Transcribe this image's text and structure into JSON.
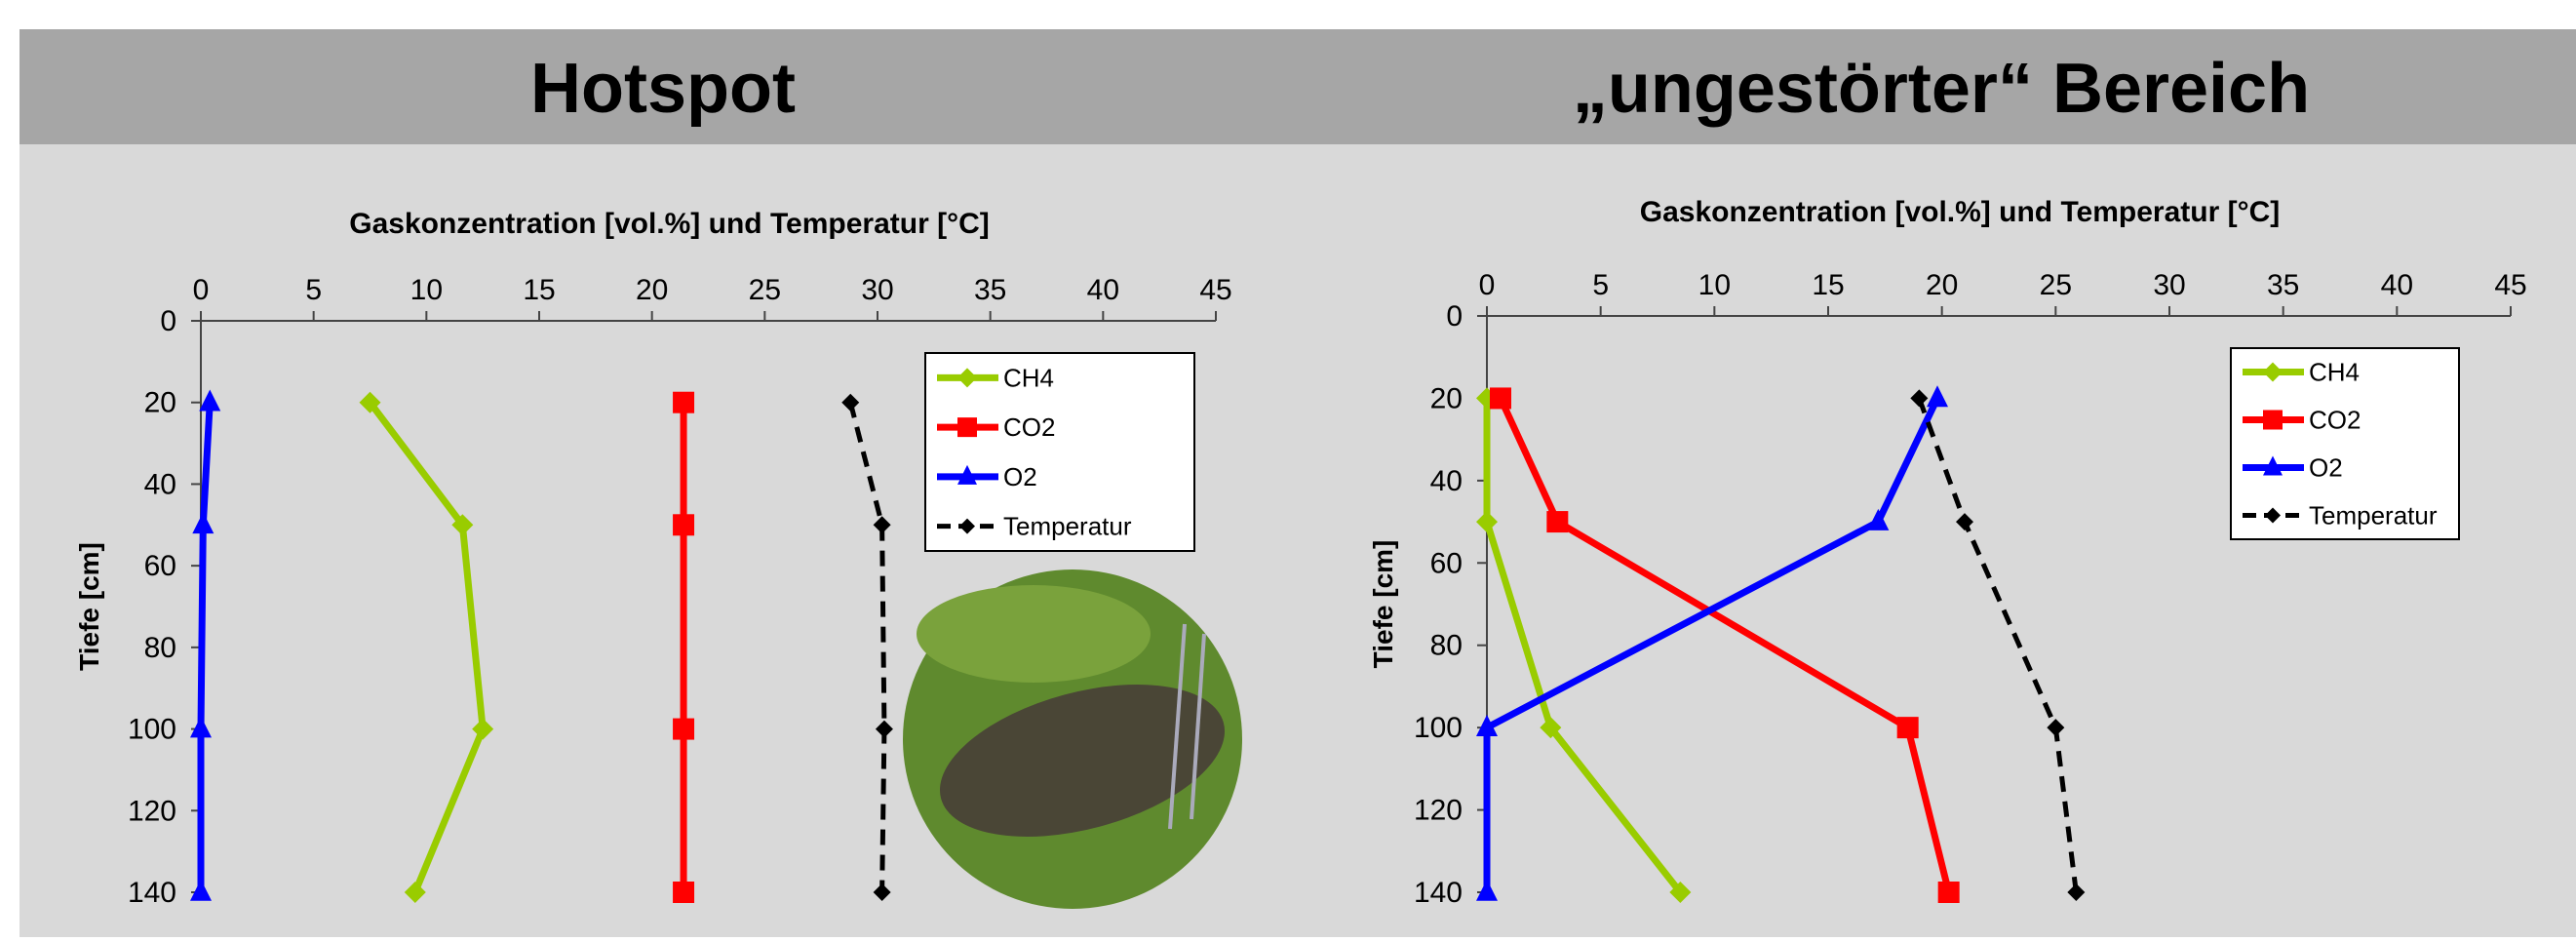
{
  "chart_data": [
    {
      "type": "line",
      "title": "Hotspot",
      "xlabel": "Gaskonzentration [vol.%] und Temperatur [°C]",
      "ylabel": "Tiefe [cm]",
      "y": [
        20,
        50,
        100,
        140
      ],
      "xlim": [
        0,
        45
      ],
      "xticks": [
        0,
        5,
        10,
        15,
        20,
        25,
        30,
        35,
        40,
        45
      ],
      "ylim": [
        0,
        140
      ],
      "yticks": [
        0,
        20,
        40,
        60,
        80,
        100,
        120,
        140
      ],
      "y_inverted": true,
      "legend": "upper right",
      "series": [
        {
          "name": "CH4",
          "color": "#99cc00",
          "marker": "diamond",
          "dash": false,
          "values": [
            7.5,
            11.6,
            12.5,
            9.5
          ]
        },
        {
          "name": "CO2",
          "color": "#ff0000",
          "marker": "square",
          "dash": false,
          "values": [
            21.4,
            21.4,
            21.4,
            21.4
          ]
        },
        {
          "name": "O2",
          "color": "#0000ff",
          "marker": "triangle",
          "dash": false,
          "values": [
            0.4,
            0.1,
            0,
            0
          ]
        },
        {
          "name": "Temperatur",
          "color": "#000000",
          "marker": "diamond",
          "dash": true,
          "values": [
            28.8,
            30.2,
            30.3,
            30.2
          ]
        }
      ]
    },
    {
      "type": "line",
      "title": "„ungestörter“ Bereich",
      "xlabel": "Gaskonzentration [vol.%] und Temperatur [°C]",
      "ylabel": "Tiefe [cm]",
      "y": [
        20,
        50,
        100,
        140
      ],
      "xlim": [
        0,
        45
      ],
      "xticks": [
        0,
        5,
        10,
        15,
        20,
        25,
        30,
        35,
        40,
        45
      ],
      "ylim": [
        0,
        140
      ],
      "yticks": [
        0,
        20,
        40,
        60,
        80,
        100,
        120,
        140
      ],
      "y_inverted": true,
      "legend": "upper right",
      "series": [
        {
          "name": "CH4",
          "color": "#99cc00",
          "marker": "diamond",
          "dash": false,
          "values": [
            0,
            0,
            2.8,
            8.5
          ]
        },
        {
          "name": "CO2",
          "color": "#ff0000",
          "marker": "square",
          "dash": false,
          "values": [
            0.6,
            3.1,
            18.5,
            20.3
          ]
        },
        {
          "name": "O2",
          "color": "#0000ff",
          "marker": "triangle",
          "dash": false,
          "values": [
            19.8,
            17.2,
            0,
            0
          ]
        },
        {
          "name": "Temperatur",
          "color": "#000000",
          "marker": "diamond",
          "dash": true,
          "values": [
            19,
            21,
            25,
            25.9
          ]
        }
      ]
    }
  ]
}
